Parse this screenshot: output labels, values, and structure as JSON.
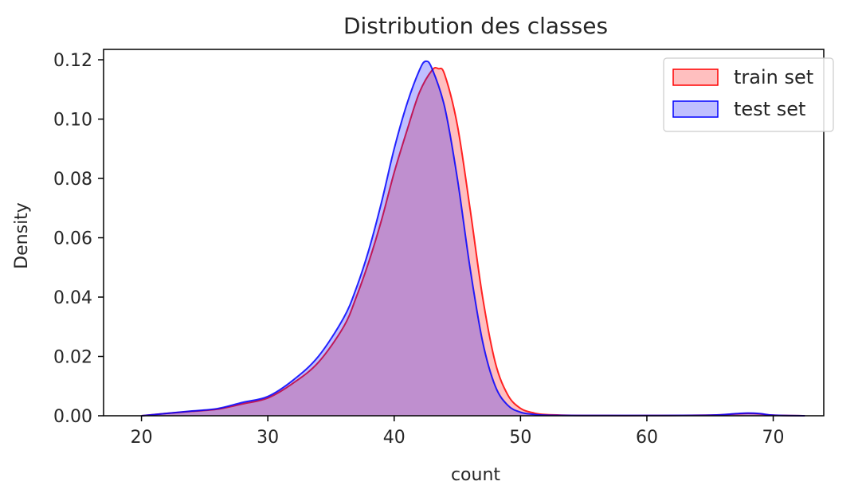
{
  "chart_data": {
    "type": "area",
    "title": "Distribution des classes",
    "xlabel": "count",
    "ylabel": "Density",
    "xlim": [
      17,
      74
    ],
    "ylim": [
      0,
      0.1235
    ],
    "xticks": [
      20,
      30,
      40,
      50,
      60,
      70
    ],
    "yticks": [
      0.0,
      0.02,
      0.04,
      0.06,
      0.08,
      0.1,
      0.12
    ],
    "ytick_labels": [
      "0.00",
      "0.02",
      "0.04",
      "0.06",
      "0.08",
      "0.10",
      "0.12"
    ],
    "grid": false,
    "legend_position": "top-right",
    "series": [
      {
        "name": "train set",
        "color": "#ff0000",
        "x": [
          20,
          22,
          24,
          26,
          28,
          30,
          32,
          34,
          36,
          37,
          38,
          39,
          40,
          41,
          42,
          43,
          43.5,
          44,
          45,
          46,
          47,
          48,
          49,
          50,
          51,
          52,
          55,
          60,
          65,
          67,
          68,
          69,
          70,
          72.5
        ],
        "y": [
          0.0,
          0.0008,
          0.0015,
          0.0022,
          0.004,
          0.006,
          0.011,
          0.018,
          0.03,
          0.04,
          0.052,
          0.066,
          0.082,
          0.096,
          0.109,
          0.1165,
          0.117,
          0.115,
          0.098,
          0.07,
          0.04,
          0.018,
          0.007,
          0.0025,
          0.001,
          0.0004,
          0.0001,
          0.0001,
          0.0002,
          0.0006,
          0.0008,
          0.0006,
          0.0002,
          0.0
        ]
      },
      {
        "name": "test set",
        "color": "#0000ff",
        "x": [
          20,
          22,
          24,
          26,
          28,
          30,
          32,
          34,
          36,
          37,
          38,
          39,
          40,
          41,
          42,
          42.5,
          43,
          44,
          45,
          46,
          47,
          48,
          49,
          50,
          51,
          52,
          55,
          60,
          65,
          67,
          68,
          69,
          70,
          72.5
        ],
        "y": [
          0.0,
          0.0008,
          0.0016,
          0.0024,
          0.0045,
          0.0065,
          0.012,
          0.02,
          0.033,
          0.043,
          0.056,
          0.072,
          0.09,
          0.105,
          0.1165,
          0.1195,
          0.117,
          0.104,
          0.08,
          0.05,
          0.025,
          0.01,
          0.0035,
          0.0012,
          0.0005,
          0.0002,
          0.0001,
          0.0001,
          0.0002,
          0.0007,
          0.0009,
          0.0007,
          0.0002,
          0.0
        ]
      }
    ]
  }
}
